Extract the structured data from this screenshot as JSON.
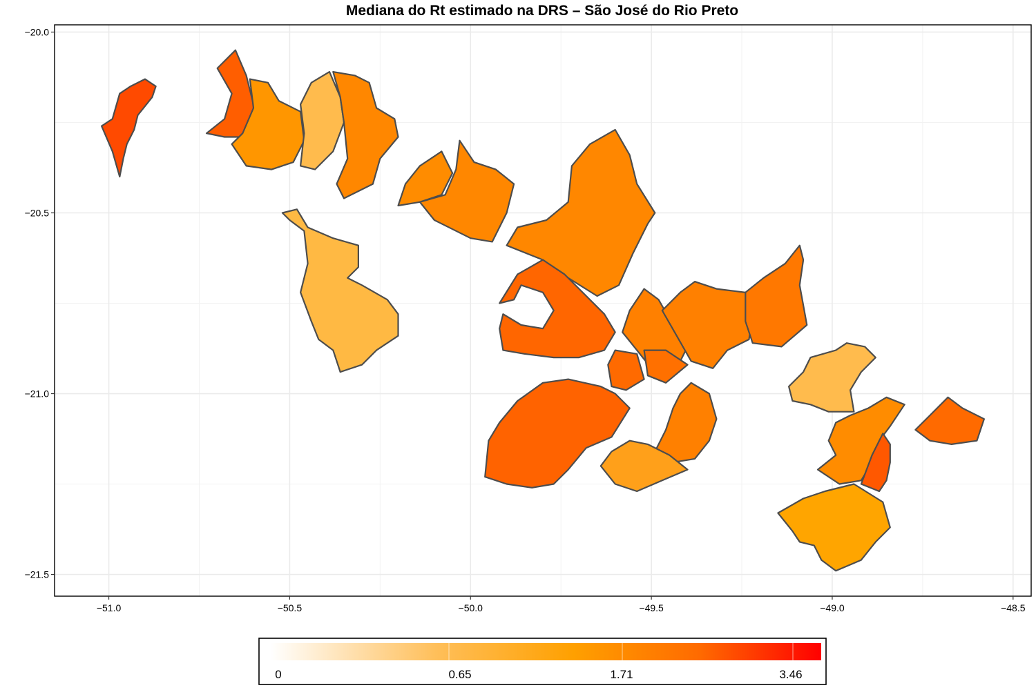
{
  "title": "Mediana do Rt estimado na DRS – São José do Rio Preto",
  "axes": {
    "x_ticks": [
      "−51.0",
      "−50.5",
      "−50.0",
      "−49.5",
      "−49.0",
      "−48.5"
    ],
    "y_ticks": [
      "−20.0",
      "−20.5",
      "−21.0",
      "−21.5"
    ],
    "x_values": [
      -51.0,
      -50.5,
      -50.0,
      -49.5,
      -49.0,
      -48.5
    ],
    "y_values": [
      -20.0,
      -20.5,
      -21.0,
      -21.5
    ],
    "xlim": [
      -51.15,
      -48.45
    ],
    "ylim": [
      -21.56,
      -19.98
    ],
    "grid": true
  },
  "legend": {
    "labels": [
      "0",
      "0.65",
      "1.71",
      "3.46"
    ],
    "colors": [
      "#ffffff",
      "#ffb84d",
      "#ff8c00",
      "#ff0000"
    ]
  },
  "regions": [
    {
      "fill": "#ff4a00",
      "pts": [
        [
          -50.87,
          -20.15
        ],
        [
          -50.88,
          -20.18
        ],
        [
          -50.92,
          -20.23
        ],
        [
          -50.93,
          -20.27
        ],
        [
          -50.95,
          -20.31
        ],
        [
          -50.96,
          -20.35
        ],
        [
          -50.97,
          -20.4
        ],
        [
          -50.99,
          -20.33
        ],
        [
          -51.02,
          -20.26
        ],
        [
          -50.99,
          -20.24
        ],
        [
          -50.97,
          -20.17
        ],
        [
          -50.94,
          -20.15
        ],
        [
          -50.9,
          -20.13
        ]
      ]
    },
    {
      "fill": "#ff5e00",
      "pts": [
        [
          -50.65,
          -20.05
        ],
        [
          -50.62,
          -20.12
        ],
        [
          -50.6,
          -20.2
        ],
        [
          -50.59,
          -20.26
        ],
        [
          -50.64,
          -20.29
        ],
        [
          -50.68,
          -20.29
        ],
        [
          -50.73,
          -20.28
        ],
        [
          -50.68,
          -20.24
        ],
        [
          -50.66,
          -20.17
        ],
        [
          -50.7,
          -20.1
        ]
      ]
    },
    {
      "fill": "#ff9600",
      "pts": [
        [
          -50.61,
          -20.13
        ],
        [
          -50.56,
          -20.14
        ],
        [
          -50.53,
          -20.19
        ],
        [
          -50.47,
          -20.22
        ],
        [
          -50.46,
          -20.3
        ],
        [
          -50.49,
          -20.36
        ],
        [
          -50.55,
          -20.38
        ],
        [
          -50.62,
          -20.37
        ],
        [
          -50.66,
          -20.31
        ],
        [
          -50.63,
          -20.28
        ],
        [
          -50.6,
          -20.21
        ]
      ]
    },
    {
      "fill": "#ffbb4d",
      "pts": [
        [
          -50.39,
          -20.11
        ],
        [
          -50.44,
          -20.14
        ],
        [
          -50.47,
          -20.2
        ],
        [
          -50.46,
          -20.28
        ],
        [
          -50.47,
          -20.37
        ],
        [
          -50.43,
          -20.38
        ],
        [
          -50.38,
          -20.33
        ],
        [
          -50.35,
          -20.25
        ],
        [
          -50.36,
          -20.18
        ]
      ]
    },
    {
      "fill": "#ff8700",
      "pts": [
        [
          -50.38,
          -20.11
        ],
        [
          -50.32,
          -20.12
        ],
        [
          -50.28,
          -20.14
        ],
        [
          -50.26,
          -20.21
        ],
        [
          -50.21,
          -20.24
        ],
        [
          -50.2,
          -20.29
        ],
        [
          -50.25,
          -20.35
        ],
        [
          -50.27,
          -20.42
        ],
        [
          -50.35,
          -20.46
        ],
        [
          -50.37,
          -20.42
        ],
        [
          -50.34,
          -20.35
        ],
        [
          -50.35,
          -20.25
        ],
        [
          -50.36,
          -20.18
        ]
      ]
    },
    {
      "fill": "#ff8c00",
      "pts": [
        [
          -50.08,
          -20.33
        ],
        [
          -50.14,
          -20.37
        ],
        [
          -50.18,
          -20.42
        ],
        [
          -50.2,
          -20.48
        ],
        [
          -50.14,
          -20.47
        ],
        [
          -50.08,
          -20.45
        ],
        [
          -50.05,
          -20.39
        ]
      ]
    },
    {
      "fill": "#ff8700",
      "pts": [
        [
          -50.03,
          -20.3
        ],
        [
          -49.99,
          -20.36
        ],
        [
          -49.93,
          -20.38
        ],
        [
          -49.88,
          -20.42
        ],
        [
          -49.9,
          -20.5
        ],
        [
          -49.94,
          -20.58
        ],
        [
          -50.0,
          -20.57
        ],
        [
          -50.1,
          -20.52
        ],
        [
          -50.14,
          -20.47
        ],
        [
          -50.07,
          -20.45
        ],
        [
          -50.04,
          -20.38
        ]
      ]
    },
    {
      "fill": "#ffb943",
      "pts": [
        [
          -50.52,
          -20.5
        ],
        [
          -50.48,
          -20.49
        ],
        [
          -50.45,
          -20.54
        ],
        [
          -50.38,
          -20.57
        ],
        [
          -50.31,
          -20.59
        ],
        [
          -50.31,
          -20.65
        ],
        [
          -50.34,
          -20.68
        ],
        [
          -50.3,
          -20.7
        ],
        [
          -50.23,
          -20.74
        ],
        [
          -50.2,
          -20.78
        ],
        [
          -50.2,
          -20.84
        ],
        [
          -50.26,
          -20.88
        ],
        [
          -50.3,
          -20.92
        ],
        [
          -50.36,
          -20.94
        ],
        [
          -50.38,
          -20.88
        ],
        [
          -50.42,
          -20.85
        ],
        [
          -50.44,
          -20.8
        ],
        [
          -50.47,
          -20.72
        ],
        [
          -50.45,
          -20.64
        ],
        [
          -50.46,
          -20.55
        ],
        [
          -50.5,
          -20.52
        ]
      ]
    },
    {
      "fill": "#ff8700",
      "pts": [
        [
          -49.6,
          -20.27
        ],
        [
          -49.67,
          -20.31
        ],
        [
          -49.72,
          -20.37
        ],
        [
          -49.73,
          -20.47
        ],
        [
          -49.79,
          -20.52
        ],
        [
          -49.87,
          -20.54
        ],
        [
          -49.9,
          -20.59
        ],
        [
          -49.8,
          -20.63
        ],
        [
          -49.73,
          -20.68
        ],
        [
          -49.65,
          -20.73
        ],
        [
          -49.59,
          -20.7
        ],
        [
          -49.55,
          -20.61
        ],
        [
          -49.51,
          -20.53
        ],
        [
          -49.49,
          -20.5
        ],
        [
          -49.54,
          -20.42
        ],
        [
          -49.56,
          -20.34
        ]
      ]
    },
    {
      "fill": "#ff6600",
      "pts": [
        [
          -49.8,
          -20.63
        ],
        [
          -49.74,
          -20.67
        ],
        [
          -49.68,
          -20.73
        ],
        [
          -49.63,
          -20.78
        ],
        [
          -49.6,
          -20.83
        ],
        [
          -49.63,
          -20.88
        ],
        [
          -49.7,
          -20.9
        ],
        [
          -49.77,
          -20.9
        ],
        [
          -49.85,
          -20.89
        ],
        [
          -49.91,
          -20.88
        ],
        [
          -49.92,
          -20.82
        ],
        [
          -49.91,
          -20.78
        ],
        [
          -49.86,
          -20.81
        ],
        [
          -49.8,
          -20.82
        ],
        [
          -49.77,
          -20.77
        ],
        [
          -49.8,
          -20.72
        ],
        [
          -49.86,
          -20.7
        ],
        [
          -49.88,
          -20.74
        ],
        [
          -49.92,
          -20.75
        ],
        [
          -49.87,
          -20.67
        ]
      ]
    },
    {
      "fill": "#ff8000",
      "pts": [
        [
          -49.52,
          -20.71
        ],
        [
          -49.48,
          -20.74
        ],
        [
          -49.44,
          -20.81
        ],
        [
          -49.4,
          -20.87
        ],
        [
          -49.43,
          -20.93
        ],
        [
          -49.46,
          -20.95
        ],
        [
          -49.5,
          -20.93
        ],
        [
          -49.54,
          -20.88
        ],
        [
          -49.58,
          -20.83
        ],
        [
          -49.56,
          -20.77
        ]
      ]
    },
    {
      "fill": "#ff8000",
      "pts": [
        [
          -49.38,
          -20.69
        ],
        [
          -49.32,
          -20.71
        ],
        [
          -49.24,
          -20.72
        ],
        [
          -49.22,
          -20.78
        ],
        [
          -49.23,
          -20.85
        ],
        [
          -49.29,
          -20.88
        ],
        [
          -49.33,
          -20.93
        ],
        [
          -49.39,
          -20.91
        ],
        [
          -49.43,
          -20.84
        ],
        [
          -49.47,
          -20.77
        ],
        [
          -49.42,
          -20.72
        ]
      ]
    },
    {
      "fill": "#ff7800",
      "pts": [
        [
          -49.09,
          -20.59
        ],
        [
          -49.13,
          -20.64
        ],
        [
          -49.19,
          -20.68
        ],
        [
          -49.24,
          -20.72
        ],
        [
          -49.24,
          -20.8
        ],
        [
          -49.22,
          -20.86
        ],
        [
          -49.14,
          -20.87
        ],
        [
          -49.07,
          -20.81
        ],
        [
          -49.09,
          -20.7
        ],
        [
          -49.08,
          -20.63
        ]
      ]
    },
    {
      "fill": "#ff6a00",
      "pts": [
        [
          -49.6,
          -20.88
        ],
        [
          -49.54,
          -20.89
        ],
        [
          -49.52,
          -20.96
        ],
        [
          -49.57,
          -20.99
        ],
        [
          -49.61,
          -20.98
        ],
        [
          -49.62,
          -20.92
        ]
      ]
    },
    {
      "fill": "#ff7000",
      "pts": [
        [
          -49.52,
          -20.88
        ],
        [
          -49.46,
          -20.88
        ],
        [
          -49.4,
          -20.92
        ],
        [
          -49.46,
          -20.97
        ],
        [
          -49.51,
          -20.95
        ]
      ]
    },
    {
      "fill": "#ff6300",
      "pts": [
        [
          -49.64,
          -20.98
        ],
        [
          -49.73,
          -20.96
        ],
        [
          -49.8,
          -20.97
        ],
        [
          -49.87,
          -21.02
        ],
        [
          -49.92,
          -21.08
        ],
        [
          -49.95,
          -21.13
        ],
        [
          -49.96,
          -21.23
        ],
        [
          -49.9,
          -21.25
        ],
        [
          -49.83,
          -21.26
        ],
        [
          -49.77,
          -21.25
        ],
        [
          -49.73,
          -21.21
        ],
        [
          -49.68,
          -21.15
        ],
        [
          -49.61,
          -21.12
        ],
        [
          -49.56,
          -21.04
        ],
        [
          -49.6,
          -21.0
        ]
      ]
    },
    {
      "fill": "#ff8000",
      "pts": [
        [
          -49.39,
          -20.97
        ],
        [
          -49.34,
          -21.0
        ],
        [
          -49.32,
          -21.07
        ],
        [
          -49.34,
          -21.13
        ],
        [
          -49.38,
          -21.18
        ],
        [
          -49.44,
          -21.19
        ],
        [
          -49.49,
          -21.16
        ],
        [
          -49.46,
          -21.1
        ],
        [
          -49.44,
          -21.04
        ],
        [
          -49.42,
          -21.0
        ]
      ]
    },
    {
      "fill": "#ffa01a",
      "pts": [
        [
          -49.51,
          -21.14
        ],
        [
          -49.45,
          -21.17
        ],
        [
          -49.4,
          -21.21
        ],
        [
          -49.47,
          -21.24
        ],
        [
          -49.54,
          -21.27
        ],
        [
          -49.6,
          -21.25
        ],
        [
          -49.64,
          -21.2
        ],
        [
          -49.61,
          -21.16
        ],
        [
          -49.56,
          -21.13
        ]
      ]
    },
    {
      "fill": "#ffbb4d",
      "pts": [
        [
          -48.96,
          -20.86
        ],
        [
          -48.99,
          -20.88
        ],
        [
          -49.06,
          -20.9
        ],
        [
          -49.08,
          -20.94
        ],
        [
          -49.12,
          -20.98
        ],
        [
          -49.11,
          -21.02
        ],
        [
          -49.06,
          -21.03
        ],
        [
          -49.01,
          -21.05
        ],
        [
          -48.94,
          -21.05
        ],
        [
          -48.95,
          -20.99
        ],
        [
          -48.92,
          -20.94
        ],
        [
          -48.88,
          -20.9
        ],
        [
          -48.91,
          -20.87
        ]
      ]
    },
    {
      "fill": "#ff8c00",
      "pts": [
        [
          -48.85,
          -21.01
        ],
        [
          -48.9,
          -21.04
        ],
        [
          -48.95,
          -21.06
        ],
        [
          -48.99,
          -21.08
        ],
        [
          -49.01,
          -21.13
        ],
        [
          -48.99,
          -21.17
        ],
        [
          -49.04,
          -21.21
        ],
        [
          -48.98,
          -21.25
        ],
        [
          -48.92,
          -21.24
        ],
        [
          -48.89,
          -21.19
        ],
        [
          -48.87,
          -21.13
        ],
        [
          -48.84,
          -21.09
        ],
        [
          -48.8,
          -21.03
        ]
      ]
    },
    {
      "fill": "#ff5800",
      "pts": [
        [
          -48.86,
          -21.11
        ],
        [
          -48.89,
          -21.17
        ],
        [
          -48.92,
          -21.25
        ],
        [
          -48.87,
          -21.27
        ],
        [
          -48.85,
          -21.24
        ],
        [
          -48.84,
          -21.19
        ],
        [
          -48.84,
          -21.14
        ]
      ]
    },
    {
      "fill": "#ff6a00",
      "pts": [
        [
          -48.68,
          -21.01
        ],
        [
          -48.64,
          -21.04
        ],
        [
          -48.58,
          -21.07
        ],
        [
          -48.6,
          -21.13
        ],
        [
          -48.67,
          -21.14
        ],
        [
          -48.73,
          -21.13
        ],
        [
          -48.77,
          -21.1
        ],
        [
          -48.73,
          -21.06
        ]
      ]
    },
    {
      "fill": "#ffa500",
      "pts": [
        [
          -48.94,
          -21.25
        ],
        [
          -49.02,
          -21.27
        ],
        [
          -49.08,
          -21.29
        ],
        [
          -49.15,
          -21.33
        ],
        [
          -49.11,
          -21.38
        ],
        [
          -49.09,
          -21.41
        ],
        [
          -49.05,
          -21.42
        ],
        [
          -49.03,
          -21.46
        ],
        [
          -48.99,
          -21.49
        ],
        [
          -48.92,
          -21.46
        ],
        [
          -48.88,
          -21.41
        ],
        [
          -48.84,
          -21.37
        ],
        [
          -48.86,
          -21.3
        ]
      ]
    }
  ]
}
